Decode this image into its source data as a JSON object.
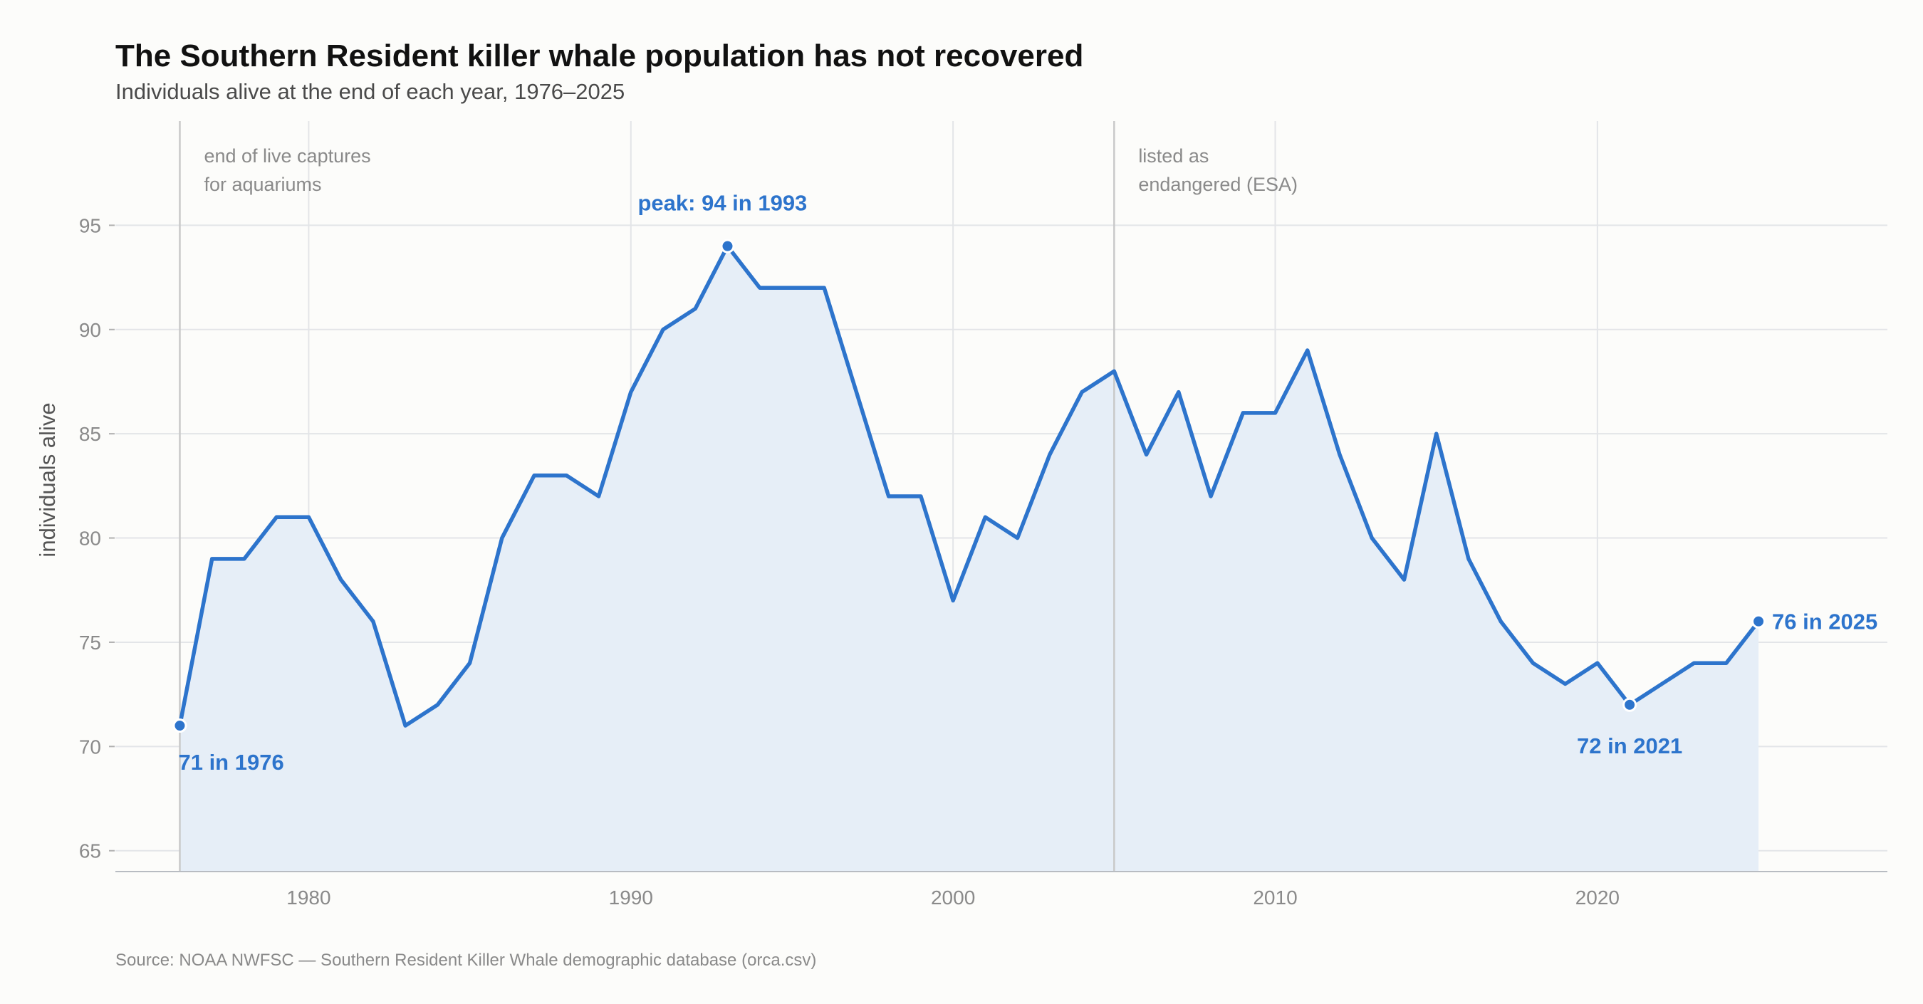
{
  "header": {
    "title": "The Southern Resident killer whale population has not recovered",
    "subtitle": "Individuals alive at the end of each year, 1976–2025"
  },
  "footer": {
    "source": "Source: NOAA NWFSC — Southern Resident Killer Whale demographic database (orca.csv)"
  },
  "colors": {
    "line": "#2d74cc",
    "area": "#e6eef7",
    "grid": "#e3e5e8",
    "event_line": "#c9c9c9",
    "background": "#fcfcfa"
  },
  "chart_data": {
    "type": "area",
    "title": "The Southern Resident killer whale population has not recovered",
    "subtitle": "Individuals alive at the end of each year, 1976–2025",
    "xlabel": "",
    "ylabel": "individuals alive",
    "xlim": [
      1974,
      2029
    ],
    "ylim": [
      64,
      100
    ],
    "x_ticks": [
      1980,
      1990,
      2000,
      2010,
      2020
    ],
    "y_ticks": [
      65,
      70,
      75,
      80,
      85,
      90,
      95
    ],
    "grid": true,
    "legend": "none",
    "x": [
      1976,
      1977,
      1978,
      1979,
      1980,
      1981,
      1982,
      1983,
      1984,
      1985,
      1986,
      1987,
      1988,
      1989,
      1990,
      1991,
      1992,
      1993,
      1994,
      1995,
      1996,
      1997,
      1998,
      1999,
      2000,
      2001,
      2002,
      2003,
      2004,
      2005,
      2006,
      2007,
      2008,
      2009,
      2010,
      2011,
      2012,
      2013,
      2014,
      2015,
      2016,
      2017,
      2018,
      2019,
      2020,
      2021,
      2022,
      2023,
      2024,
      2025
    ],
    "y": [
      71,
      79,
      79,
      81,
      81,
      78,
      76,
      71,
      72,
      74,
      80,
      83,
      83,
      82,
      87,
      90,
      91,
      94,
      92,
      92,
      92,
      87,
      82,
      82,
      77,
      81,
      80,
      84,
      87,
      88,
      84,
      87,
      82,
      86,
      86,
      89,
      84,
      80,
      78,
      85,
      79,
      76,
      74,
      73,
      74,
      72,
      73,
      74,
      74,
      76
    ],
    "events": [
      {
        "x": 1976,
        "label_lines": [
          "end of live captures",
          "for aquariums"
        ]
      },
      {
        "x": 2005,
        "label_lines": [
          "listed as",
          "endangered (ESA)"
        ]
      }
    ],
    "annotations": [
      {
        "x": 1976,
        "y": 71,
        "text": "71 in 1976",
        "placement": "below-right"
      },
      {
        "x": 1993,
        "y": 94,
        "text": "peak: 94 in 1993",
        "placement": "above"
      },
      {
        "x": 2021,
        "y": 72,
        "text": "72 in 2021",
        "placement": "below"
      },
      {
        "x": 2025,
        "y": 76,
        "text": "76 in 2025",
        "placement": "right"
      }
    ]
  }
}
